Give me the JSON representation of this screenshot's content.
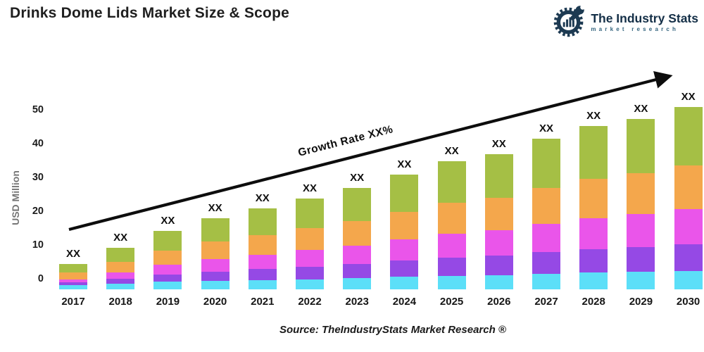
{
  "header": {
    "title": "Drinks Dome Lids Market Size & Scope",
    "logo": {
      "name": "The Industry Stats",
      "tagline": "market research",
      "icon": "gear-wrench-barchart-icon",
      "color": "#1d3a52"
    }
  },
  "chart_data": {
    "type": "bar",
    "stacked": true,
    "title": "Drinks Dome Lids Market Size & Scope",
    "xlabel": "",
    "ylabel": "USD Million",
    "yticks": [
      0,
      10,
      20,
      30,
      40,
      50
    ],
    "ylim": [
      -3,
      55
    ],
    "gridlines": false,
    "legend": "none",
    "baseline_value": -2.9,
    "categories": [
      "2017",
      "2018",
      "2019",
      "2020",
      "2021",
      "2022",
      "2023",
      "2024",
      "2025",
      "2026",
      "2027",
      "2028",
      "2029",
      "2030"
    ],
    "bar_value_label": "XX",
    "annotation": "Growth Rate XX%",
    "series": [
      {
        "name": "cyan",
        "color": "#5cdff8",
        "values": [
          1.2,
          1.7,
          2.2,
          2.5,
          2.8,
          3.0,
          3.3,
          3.7,
          4.0,
          4.2,
          4.6,
          5.0,
          5.2,
          5.5
        ]
      },
      {
        "name": "purple",
        "color": "#9549e5",
        "values": [
          0.8,
          1.5,
          2.2,
          2.8,
          3.2,
          3.7,
          4.2,
          4.8,
          5.4,
          5.7,
          6.4,
          6.9,
          7.3,
          7.8
        ]
      },
      {
        "name": "magenta",
        "color": "#ea55ea",
        "values": [
          1.0,
          1.9,
          2.8,
          3.6,
          4.2,
          4.9,
          5.5,
          6.3,
          7.1,
          7.5,
          8.4,
          9.2,
          9.7,
          10.4
        ]
      },
      {
        "name": "orange",
        "color": "#f4a74c",
        "values": [
          2.0,
          3.1,
          4.3,
          5.2,
          5.9,
          6.5,
          7.3,
          8.2,
          9.2,
          9.6,
          10.7,
          11.6,
          12.1,
          12.9
        ]
      },
      {
        "name": "green",
        "color": "#a5bf45",
        "values": [
          2.6,
          4.1,
          5.7,
          6.9,
          7.8,
          8.8,
          9.7,
          11.0,
          12.3,
          12.9,
          14.4,
          15.6,
          16.2,
          17.4
        ]
      }
    ]
  },
  "footer": {
    "source": "Source: TheIndustryStats Market Research ®"
  }
}
